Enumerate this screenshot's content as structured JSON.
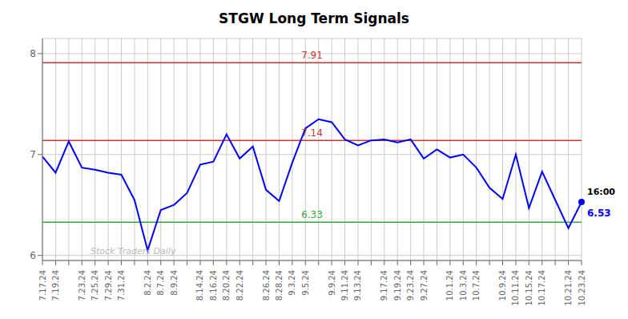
{
  "chart_data": {
    "type": "line",
    "title": "STGW Long Term Signals",
    "categories": [
      "7.17.24",
      "7.19.24",
      null,
      "7.23.24",
      "7.25.24",
      "7.29.24",
      "7.31.24",
      null,
      "8.2.24",
      "8.7.24",
      "8.9.24",
      null,
      "8.14.24",
      "8.16.24",
      "8.20.24",
      "8.22.24",
      null,
      "8.26.24",
      "8.28.24",
      "9.3.24",
      "9.5.24",
      null,
      "9.9.24",
      "9.11.24",
      "9.13.24",
      null,
      "9.17.24",
      "9.19.24",
      "9.23.24",
      "9.27.24",
      null,
      "10.1.24",
      "10.3.24",
      "10.7.24",
      null,
      "10.9.24",
      "10.11.24",
      "10.15.24",
      "10.17.24",
      null,
      "10.21.24",
      "10.23.24"
    ],
    "values": [
      6.98,
      6.82,
      7.13,
      6.87,
      6.85,
      6.82,
      6.8,
      6.55,
      6.05,
      6.45,
      6.5,
      6.62,
      6.9,
      6.93,
      7.2,
      6.96,
      7.08,
      6.65,
      6.54,
      6.92,
      7.26,
      7.35,
      7.32,
      7.15,
      7.09,
      7.14,
      7.15,
      7.12,
      7.15,
      6.96,
      7.05,
      6.97,
      7.0,
      6.87,
      6.67,
      6.56,
      7.0,
      6.47,
      6.83,
      6.55,
      6.27,
      6.53
    ],
    "color": "#0000ff",
    "ylim": [
      5.95,
      8.15
    ],
    "yticks": [
      6,
      7,
      8
    ],
    "grid": true,
    "reference_lines": [
      {
        "value": 7.91,
        "color": "#cc3333"
      },
      {
        "value": 7.14,
        "color": "#cc3333"
      },
      {
        "value": 6.33,
        "color": "#33aa33"
      }
    ],
    "annotations": [
      {
        "text": "16:00",
        "x": 41,
        "y": 6.53,
        "color": "#000000"
      },
      {
        "text": "6.53",
        "x": 41,
        "y": 6.53,
        "color": "#0000ff"
      },
      {
        "text": "Stock Traders Daily",
        "color": "#aaaaaa"
      }
    ]
  }
}
